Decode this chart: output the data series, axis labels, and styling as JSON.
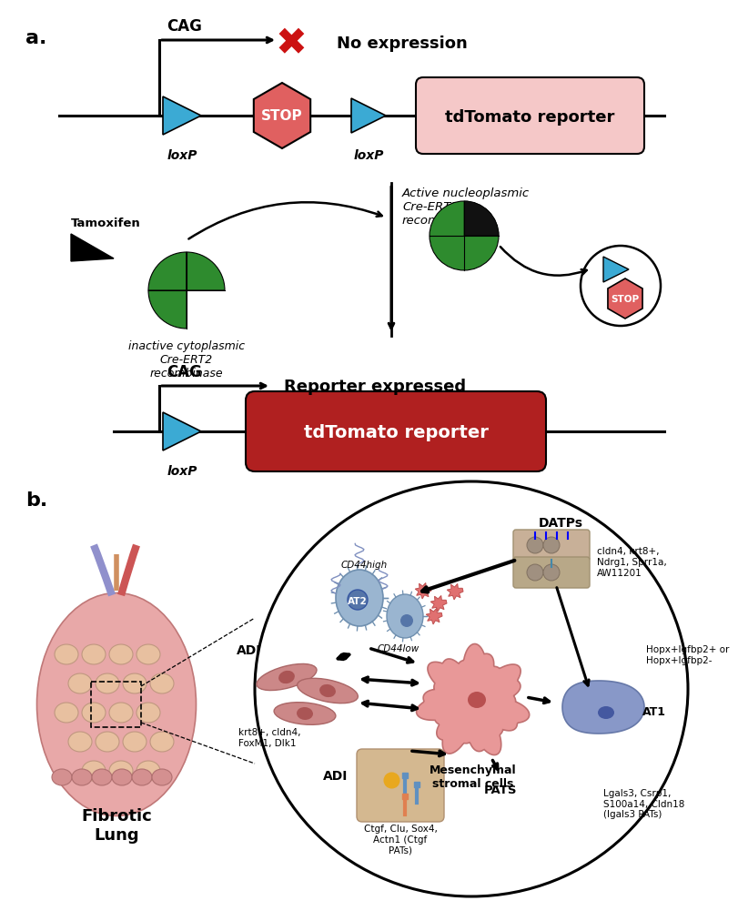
{
  "panel_a_label": "a.",
  "panel_b_label": "b.",
  "bg_color": "#ffffff",
  "top_section": {
    "cag_label": "CAG",
    "no_expression": "No expression",
    "loxp1": "loxP",
    "loxp2": "loxP",
    "stop_label": "STOP",
    "tdt_label": "tdTomato reporter",
    "tdt_color_light": "#f5c8c8",
    "stop_color": "#e06060",
    "triangle_color": "#3baad4",
    "line_color": "#000000"
  },
  "middle_section": {
    "tamoxifen": "Tamoxifen",
    "inactive_label": "inactive cytoplasmic\nCre-ERT2\nrecombinase",
    "active_label": "Active nucleoplasmic\nCre-ERT2\nrecombinase",
    "green_color": "#2e8b2e",
    "black_color": "#111111"
  },
  "bottom_section": {
    "cag_label": "CAG",
    "reporter_expressed": "Reporter expressed",
    "loxp": "loxP",
    "tdt_label": "tdTomato reporter",
    "tdt_color": "#b02020"
  },
  "panel_b": {
    "fibrotic_lung": "Fibrotic\nLung",
    "at2": "AT2",
    "at1": "AT1",
    "adi_label1": "ADI",
    "adi_label2": "ADI",
    "datps": "DATPs",
    "pats": "PATS",
    "mesenchymal": "Mesenchymal\nstromal cells",
    "cd44high": "CD44high",
    "cd44low": "CD44low",
    "datp_genes": "cldn4, krt8+,\nNdrg1, Sprr1a,\nAW11201",
    "adi_genes": "krt8+, cldn4,\nFoxM1, Dlk1",
    "pats_genes1": "Ctgf, Clu, Sox4,\nActn1 (Ctgf\nPATs)",
    "pats_genes2": "Lgals3, Csrp1,\nS100a14, Cldn18\n(Igals3 PATs)",
    "hopx_genes": "Hopx+Igfbp2+ or\nHopx+Igfbp2-"
  }
}
